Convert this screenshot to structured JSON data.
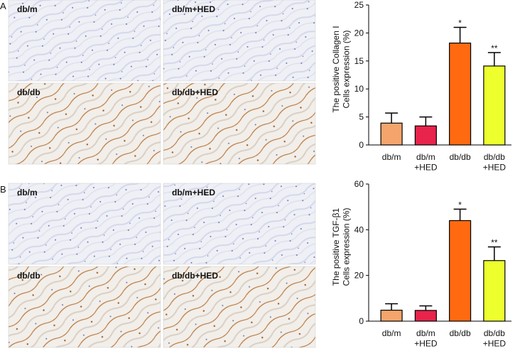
{
  "panels": [
    {
      "label": "A",
      "images": [
        "db/m",
        "db/m+HED",
        "db/db",
        "db/db+HED"
      ]
    },
    {
      "label": "B",
      "images": [
        "db/m",
        "db/m+HED",
        "db/db",
        "db/db+HED"
      ]
    }
  ],
  "chart_data": [
    {
      "type": "bar",
      "y_label": "The positive Collagen I\nCells expression (%)",
      "categories": [
        "db/m",
        "db/m\n+HED",
        "db/db",
        "db/db\n+HED"
      ],
      "values": [
        3.9,
        3.4,
        18.2,
        14.1
      ],
      "errors": [
        1.8,
        1.6,
        2.8,
        2.4
      ],
      "colors": [
        "#f5a56c",
        "#e8244c",
        "#ff6a10",
        "#eeff2e"
      ],
      "annotations": [
        {
          "index": 2,
          "text": "*"
        },
        {
          "index": 3,
          "text": "**"
        }
      ],
      "ylim": [
        0,
        25
      ],
      "yticks": [
        0,
        5,
        10,
        15,
        20,
        25
      ],
      "grid": false
    },
    {
      "type": "bar",
      "y_label": "The positive TGF-β1\nCells expression (%)",
      "categories": [
        "db/m",
        "db/m\n+HED",
        "db/db",
        "db/db\n+HED"
      ],
      "values": [
        4.8,
        4.7,
        44,
        26.5
      ],
      "errors": [
        2.8,
        2.0,
        5,
        6
      ],
      "colors": [
        "#f5a56c",
        "#e8244c",
        "#ff6a10",
        "#eeff2e"
      ],
      "annotations": [
        {
          "index": 2,
          "text": "*"
        },
        {
          "index": 3,
          "text": "**"
        }
      ],
      "ylim": [
        0,
        60
      ],
      "yticks": [
        0,
        20,
        40,
        60
      ],
      "grid": false
    }
  ]
}
